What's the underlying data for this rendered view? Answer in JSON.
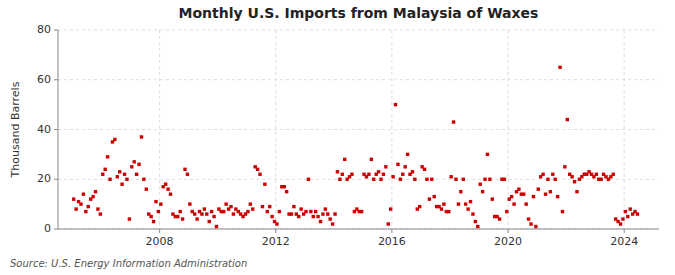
{
  "chart_data": {
    "type": "scatter",
    "title": "Monthly U.S. Imports from Malaysia of Waxes",
    "ylabel": "Thousand Barrels",
    "annotations": [
      "Source: U.S. Energy Information Administration"
    ],
    "color": "#cc0000",
    "marker": "square",
    "grid": true,
    "xlim": [
      2004.5,
      2025.2
    ],
    "xticks": [
      2008,
      2012,
      2016,
      2020,
      2024
    ],
    "ylim": [
      0,
      80
    ],
    "yticks": [
      0,
      20,
      40,
      60,
      80
    ],
    "x": [
      2005.0416666666667,
      2005.125,
      2005.2083333333333,
      2005.2916666666667,
      2005.375,
      2005.4583333333333,
      2005.5416666666667,
      2005.625,
      2005.7083333333333,
      2005.7916666666667,
      2005.875,
      2005.9583333333333,
      2006.0416666666667,
      2006.125,
      2006.2083333333333,
      2006.2916666666667,
      2006.375,
      2006.4583333333333,
      2006.5416666666667,
      2006.625,
      2006.7083333333333,
      2006.7916666666667,
      2006.875,
      2006.9583333333333,
      2007.0416666666667,
      2007.125,
      2007.2083333333333,
      2007.2916666666667,
      2007.375,
      2007.4583333333333,
      2007.5416666666667,
      2007.625,
      2007.7083333333333,
      2007.7916666666667,
      2007.875,
      2007.9583333333333,
      2008.0416666666667,
      2008.125,
      2008.2083333333333,
      2008.2916666666667,
      2008.375,
      2008.4583333333333,
      2008.5416666666667,
      2008.625,
      2008.7083333333333,
      2008.7916666666667,
      2008.875,
      2008.9583333333333,
      2009.0416666666667,
      2009.125,
      2009.2083333333333,
      2009.2916666666667,
      2009.375,
      2009.4583333333333,
      2009.5416666666667,
      2009.625,
      2009.7083333333333,
      2009.7916666666667,
      2009.875,
      2009.9583333333333,
      2010.0416666666667,
      2010.125,
      2010.2083333333333,
      2010.2916666666667,
      2010.375,
      2010.4583333333333,
      2010.5416666666667,
      2010.625,
      2010.7083333333333,
      2010.7916666666667,
      2010.875,
      2010.9583333333333,
      2011.0416666666667,
      2011.125,
      2011.2083333333333,
      2011.2916666666667,
      2011.375,
      2011.4583333333333,
      2011.5416666666667,
      2011.625,
      2011.7083333333333,
      2011.7916666666667,
      2011.875,
      2011.9583333333333,
      2012.0416666666667,
      2012.125,
      2012.2083333333333,
      2012.2916666666667,
      2012.375,
      2012.4583333333333,
      2012.5416666666667,
      2012.625,
      2012.7083333333333,
      2012.7916666666667,
      2012.875,
      2012.9583333333333,
      2013.0416666666667,
      2013.125,
      2013.2083333333333,
      2013.2916666666667,
      2013.375,
      2013.4583333333333,
      2013.5416666666667,
      2013.625,
      2013.7083333333333,
      2013.7916666666667,
      2013.875,
      2013.9583333333333,
      2014.0416666666667,
      2014.125,
      2014.2083333333333,
      2014.2916666666667,
      2014.375,
      2014.4583333333333,
      2014.5416666666667,
      2014.625,
      2014.7083333333333,
      2014.7916666666667,
      2014.875,
      2014.9583333333333,
      2015.0416666666667,
      2015.125,
      2015.2083333333333,
      2015.2916666666667,
      2015.375,
      2015.4583333333333,
      2015.5416666666667,
      2015.625,
      2015.7083333333333,
      2015.7916666666667,
      2015.875,
      2015.9583333333333,
      2016.0416666666667,
      2016.125,
      2016.2083333333333,
      2016.2916666666667,
      2016.375,
      2016.4583333333333,
      2016.5416666666667,
      2016.625,
      2016.7083333333333,
      2016.7916666666667,
      2016.875,
      2016.9583333333333,
      2017.0416666666667,
      2017.125,
      2017.2083333333333,
      2017.2916666666667,
      2017.375,
      2017.4583333333333,
      2017.5416666666667,
      2017.625,
      2017.7083333333333,
      2017.7916666666667,
      2017.875,
      2017.9583333333333,
      2018.0416666666667,
      2018.125,
      2018.2083333333333,
      2018.2916666666667,
      2018.375,
      2018.4583333333333,
      2018.5416666666667,
      2018.625,
      2018.7083333333333,
      2018.7916666666667,
      2018.875,
      2018.9583333333333,
      2019.0416666666667,
      2019.125,
      2019.2083333333333,
      2019.2916666666667,
      2019.375,
      2019.4583333333333,
      2019.5416666666667,
      2019.625,
      2019.7083333333333,
      2019.7916666666667,
      2019.875,
      2019.9583333333333,
      2020.0416666666667,
      2020.125,
      2020.2083333333333,
      2020.2916666666667,
      2020.375,
      2020.4583333333333,
      2020.5416666666667,
      2020.625,
      2020.7083333333333,
      2020.7916666666667,
      2020.875,
      2020.9583333333333,
      2021.0416666666667,
      2021.125,
      2021.2083333333333,
      2021.2916666666667,
      2021.375,
      2021.4583333333333,
      2021.5416666666667,
      2021.625,
      2021.7083333333333,
      2021.7916666666667,
      2021.875,
      2021.9583333333333,
      2022.0416666666667,
      2022.125,
      2022.2083333333333,
      2022.2916666666667,
      2022.375,
      2022.4583333333333,
      2022.5416666666667,
      2022.625,
      2022.7083333333333,
      2022.7916666666667,
      2022.875,
      2022.9583333333333,
      2023.0416666666667,
      2023.125,
      2023.2083333333333,
      2023.2916666666667,
      2023.375,
      2023.4583333333333,
      2023.5416666666667,
      2023.625,
      2023.7083333333333,
      2023.7916666666667,
      2023.875,
      2023.9583333333333,
      2024.0416666666667,
      2024.125,
      2024.2083333333333,
      2024.2916666666667,
      2024.375,
      2024.4583333333333
    ],
    "values": [
      12,
      8,
      11,
      10,
      14,
      7,
      9,
      12,
      13,
      15,
      8,
      6,
      22,
      24,
      29,
      20,
      35,
      36,
      21,
      23,
      18,
      22,
      20,
      4,
      25,
      27,
      22,
      26,
      37,
      20,
      16,
      6,
      5,
      3,
      11,
      7,
      10,
      17,
      18,
      16,
      14,
      6,
      5,
      5,
      7,
      4,
      24,
      22,
      10,
      7,
      6,
      4,
      7,
      6,
      8,
      6,
      3,
      7,
      5,
      1,
      8,
      7,
      7,
      10,
      8,
      9,
      6,
      8,
      7,
      6,
      5,
      6,
      7,
      10,
      8,
      25,
      24,
      22,
      9,
      18,
      7,
      9,
      5,
      3,
      2,
      7,
      17,
      17,
      15,
      6,
      6,
      9,
      6,
      5,
      8,
      6,
      7,
      20,
      7,
      5,
      7,
      5,
      3,
      6,
      8,
      6,
      4,
      2,
      6,
      23,
      20,
      22,
      28,
      20,
      21,
      22,
      7,
      8,
      7,
      7,
      22,
      21,
      22,
      28,
      20,
      22,
      23,
      20,
      22,
      25,
      2,
      8,
      21,
      50,
      26,
      20,
      22,
      25,
      30,
      22,
      23,
      20,
      8,
      9,
      25,
      24,
      20,
      12,
      20,
      13,
      9,
      9,
      8,
      10,
      7,
      7,
      21,
      43,
      20,
      10,
      15,
      20,
      10,
      8,
      11,
      6,
      3,
      1,
      18,
      15,
      20,
      30,
      20,
      12,
      5,
      5,
      4,
      20,
      20,
      7,
      12,
      13,
      10,
      15,
      16,
      14,
      14,
      10,
      4,
      2,
      13,
      1,
      16,
      21,
      22,
      14,
      20,
      15,
      22,
      20,
      13,
      65,
      7,
      25,
      44,
      22,
      21,
      19,
      15,
      20,
      21,
      22,
      22,
      23,
      22,
      21,
      22,
      20,
      20,
      22,
      21,
      20,
      21,
      22,
      4,
      3,
      2,
      4,
      7,
      5,
      8,
      6,
      7,
      6
    ]
  }
}
